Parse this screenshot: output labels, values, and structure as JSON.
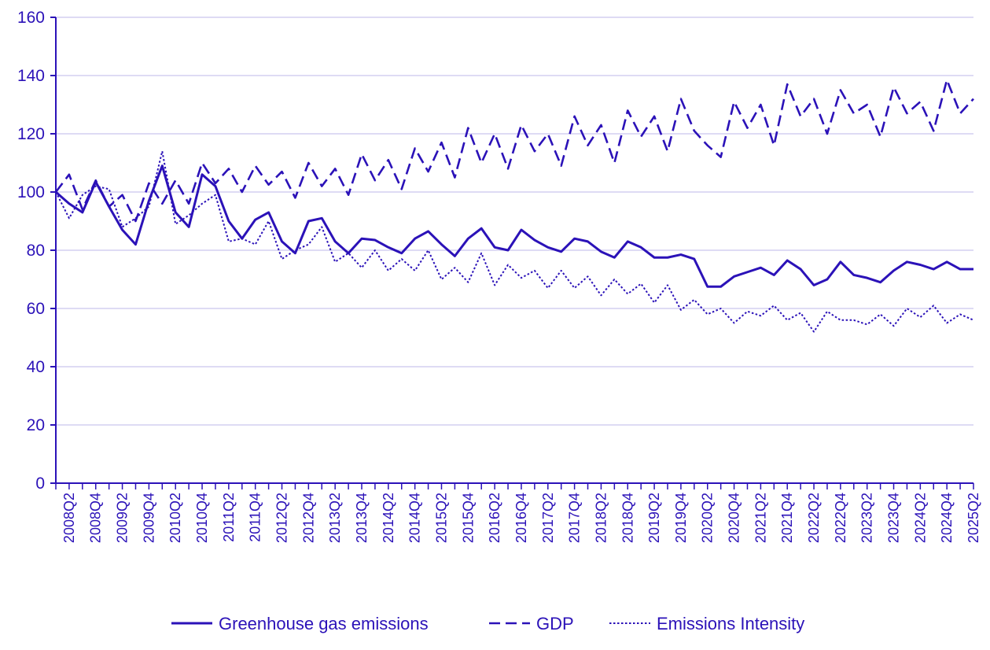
{
  "chart_data": {
    "type": "line",
    "title": "",
    "xlabel": "",
    "ylabel": "",
    "ylim": [
      0,
      160
    ],
    "y_ticks": [
      0,
      20,
      40,
      60,
      80,
      100,
      120,
      140,
      160
    ],
    "grid": "horizontal",
    "legend_position": "bottom-center",
    "color": "#2b12b8",
    "grid_color": "#c9c5ee",
    "x": [
      "2008Q1",
      "2008Q2",
      "2008Q3",
      "2008Q4",
      "2009Q1",
      "2009Q2",
      "2009Q3",
      "2009Q4",
      "2010Q1",
      "2010Q2",
      "2010Q3",
      "2010Q4",
      "2011Q1",
      "2011Q2",
      "2011Q3",
      "2011Q4",
      "2012Q1",
      "2012Q2",
      "2012Q3",
      "2012Q4",
      "2013Q1",
      "2013Q2",
      "2013Q3",
      "2013Q4",
      "2014Q1",
      "2014Q2",
      "2014Q3",
      "2014Q4",
      "2015Q1",
      "2015Q2",
      "2015Q3",
      "2015Q4",
      "2016Q1",
      "2016Q2",
      "2016Q3",
      "2016Q4",
      "2017Q1",
      "2017Q2",
      "2017Q3",
      "2017Q4",
      "2018Q1",
      "2018Q2",
      "2018Q3",
      "2018Q4",
      "2019Q1",
      "2019Q2",
      "2019Q3",
      "2019Q4",
      "2020Q1",
      "2020Q2",
      "2020Q3",
      "2020Q4",
      "2021Q1",
      "2021Q2",
      "2021Q3",
      "2021Q4",
      "2022Q1",
      "2022Q2",
      "2022Q3",
      "2022Q4",
      "2023Q1",
      "2023Q2",
      "2023Q3",
      "2023Q4",
      "2024Q1",
      "2024Q2",
      "2024Q3",
      "2024Q4",
      "2025Q1",
      "2025Q2"
    ],
    "x_tick_labels": [
      "2008Q2",
      "2008Q4",
      "2009Q2",
      "2009Q4",
      "2010Q2",
      "2010Q4",
      "2011Q2",
      "2011Q4",
      "2012Q2",
      "2012Q4",
      "2013Q2",
      "2013Q4",
      "2014Q2",
      "2014Q4",
      "2015Q2",
      "2015Q4",
      "2016Q2",
      "2016Q4",
      "2017Q2",
      "2017Q4",
      "2018Q2",
      "2018Q4",
      "2019Q2",
      "2019Q4",
      "2020Q2",
      "2020Q4",
      "2021Q2",
      "2021Q4",
      "2022Q2",
      "2022Q4",
      "2023Q2",
      "2023Q4",
      "2024Q2",
      "2024Q4",
      "2025Q2"
    ],
    "series": [
      {
        "name": "Greenhouse gas emissions",
        "dash": "solid",
        "values": [
          100,
          96,
          93,
          103.5,
          95,
          87,
          82,
          97,
          109,
          93,
          88,
          106,
          102,
          90,
          84,
          90.5,
          93,
          83,
          79,
          90,
          91,
          83,
          79,
          84,
          83.5,
          81,
          79,
          84,
          86.5,
          82,
          78,
          84,
          87.5,
          81,
          80,
          87,
          83.5,
          81,
          79.5,
          84,
          83,
          79.5,
          77.5,
          83,
          81,
          77.5,
          77.5,
          78.5,
          77,
          67.5,
          67.5,
          71,
          72.5,
          74,
          71.5,
          76.5,
          73.5,
          68,
          70,
          76,
          71.5,
          70.5,
          69,
          73,
          76,
          75,
          73.5,
          76,
          73.5,
          73.5
        ]
      },
      {
        "name": "GDP",
        "dash": "dashed",
        "values": [
          100,
          106,
          94,
          104,
          95,
          99,
          90,
          103,
          96,
          104,
          96,
          110,
          103,
          108,
          100,
          109,
          102.5,
          107,
          98,
          110,
          102,
          108,
          99,
          113,
          104,
          111,
          101,
          115,
          107,
          117,
          105,
          122,
          110,
          120,
          108,
          123,
          114,
          120,
          109,
          126,
          116,
          123,
          110,
          128,
          119,
          126,
          114,
          132,
          121,
          116,
          112,
          131,
          122,
          130,
          116,
          137,
          126,
          132,
          120,
          135,
          127,
          130,
          119,
          136,
          127,
          131,
          121,
          138.5,
          127,
          132
        ]
      },
      {
        "name": "Emissions Intensity",
        "dash": "dotted",
        "values": [
          100,
          91,
          99,
          102,
          101,
          88,
          91,
          95,
          114,
          89,
          92,
          96,
          99,
          83,
          84,
          82,
          90,
          77,
          80,
          82,
          88,
          76,
          79,
          74,
          80,
          73,
          77,
          73,
          80,
          70,
          74,
          69,
          79,
          68,
          75,
          70.5,
          73,
          67,
          73,
          67,
          71,
          64.5,
          70,
          65,
          68.5,
          62,
          68,
          59.5,
          63,
          58,
          60,
          55,
          59,
          57.5,
          61,
          56,
          58.5,
          52,
          59,
          56,
          56,
          54.5,
          58,
          54,
          60,
          57,
          61,
          55,
          58,
          56
        ]
      }
    ]
  }
}
